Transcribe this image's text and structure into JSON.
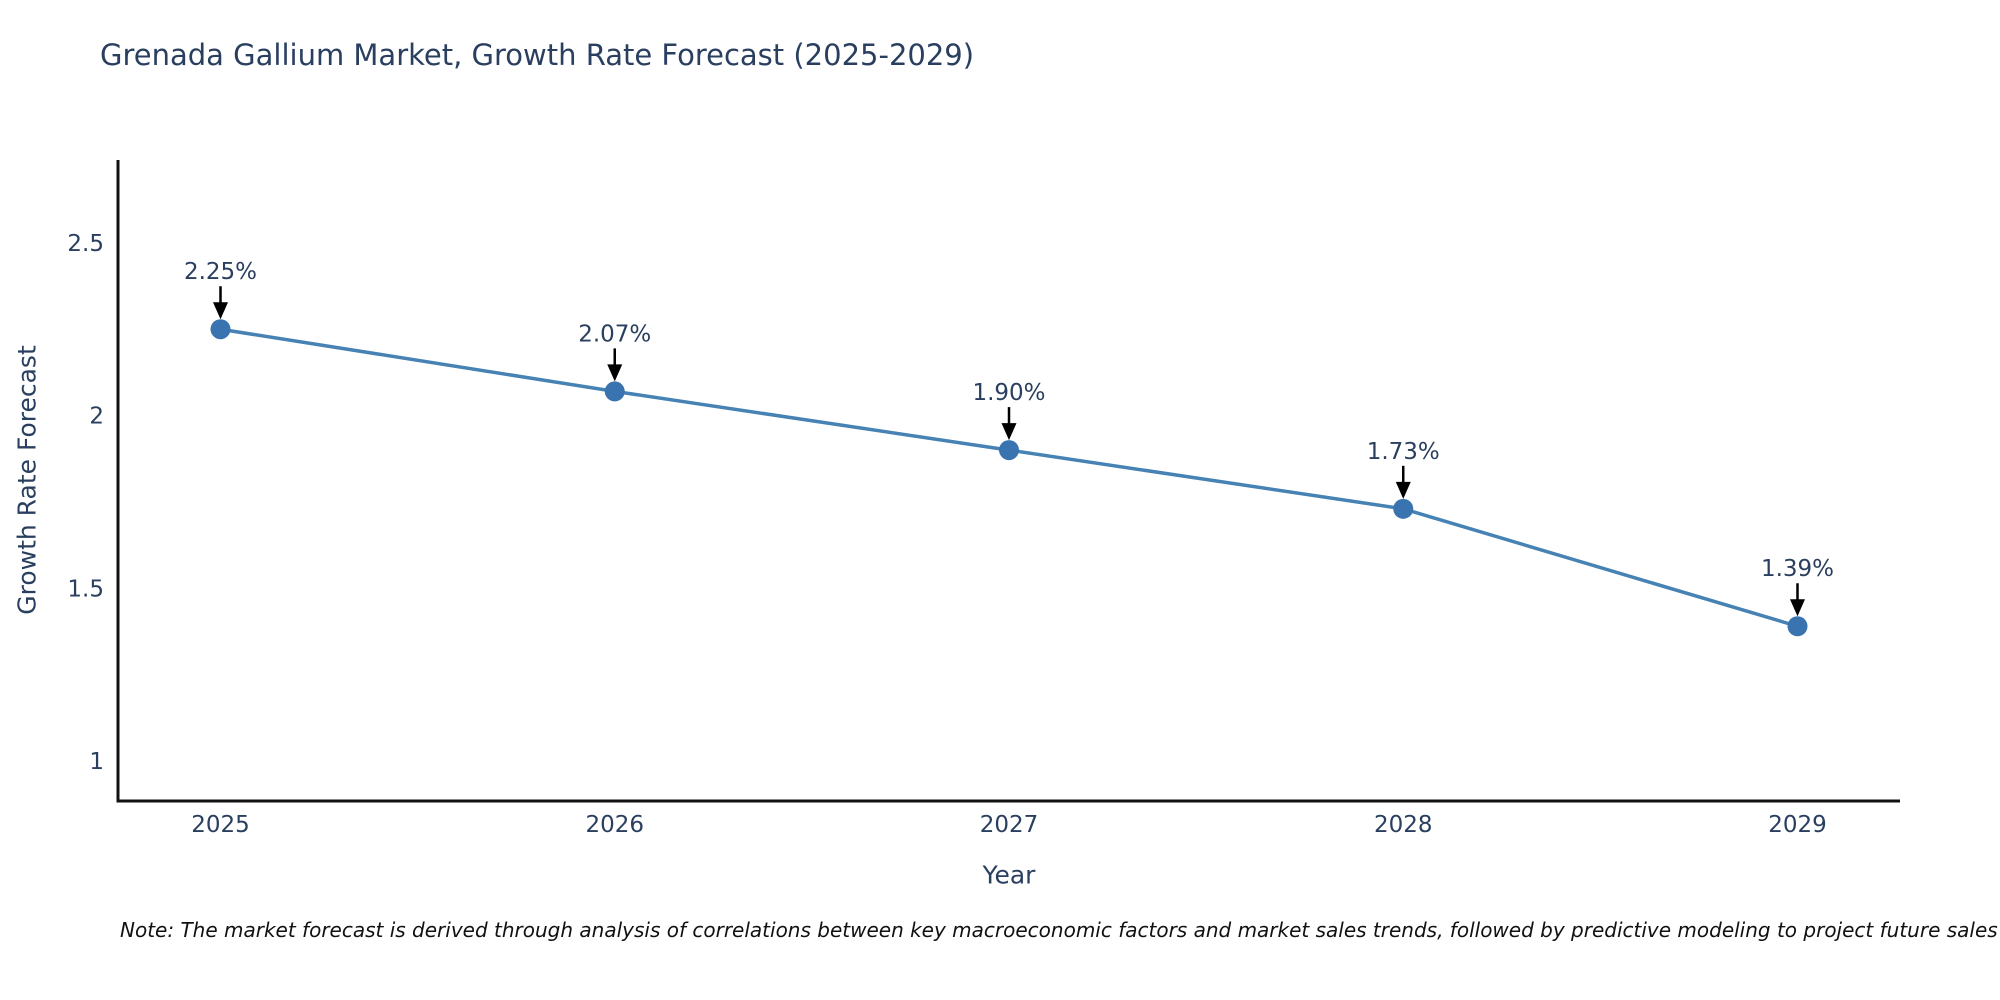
{
  "page": {
    "background": "#ffffff"
  },
  "chart_data": {
    "type": "line",
    "title": "Grenada Gallium Market, Growth Rate Forecast (2025-2029)",
    "xlabel": "Year",
    "ylabel": "Growth Rate Forecast",
    "x": [
      2025,
      2026,
      2027,
      2028,
      2029
    ],
    "values": [
      2.25,
      2.07,
      1.9,
      1.73,
      1.39
    ],
    "point_labels": [
      "2.25%",
      "2.07%",
      "1.90%",
      "1.73%",
      "1.39%"
    ],
    "xtick_labels": [
      "2025",
      "2026",
      "2027",
      "2028",
      "2029"
    ],
    "ytick_values": [
      1,
      1.5,
      2,
      2.5
    ],
    "ytick_labels": [
      "1",
      "1.5",
      "2",
      "2.5"
    ],
    "xlim": [
      2024.74,
      2029.26
    ],
    "ylim": [
      0.884,
      2.74
    ],
    "grid": false,
    "legend": "none",
    "line_color": "#4682b4",
    "marker_color": "#3a74b0",
    "axis_color": "#111111",
    "text_color": "#2a3f5f",
    "annotation_color": "#2a3f5f",
    "arrow_color": "#000000"
  },
  "note": {
    "text": "Note: The market forecast is derived through analysis of correlations between key macroeconomic factors and market sales trends, followed by predictive modeling to project future sales"
  }
}
